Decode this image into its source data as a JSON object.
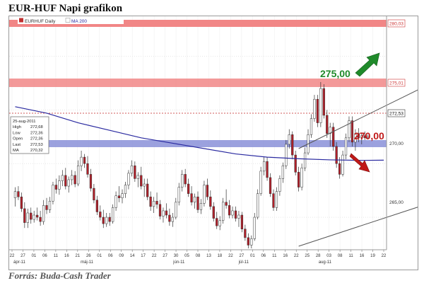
{
  "page": {
    "title": "EUR-HUF Napi grafikon",
    "source": "Forrás: Buda-Cash Trader"
  },
  "chart_header": {
    "symbol": "EURHUF Daily",
    "indicator": "MA 200"
  },
  "info_box": [
    {
      "label": "25-aug-2011",
      "value": ""
    },
    {
      "label": "High",
      "value": "272,68"
    },
    {
      "label": "Low",
      "value": "272,36"
    },
    {
      "label": "Open",
      "value": "272,36"
    },
    {
      "label": "Last",
      "value": "272,53"
    },
    {
      "label": "MA",
      "value": "270,32"
    }
  ],
  "colors": {
    "up_candle": "#ffffff",
    "down_candle": "#b0202a",
    "ma_line": "#2a2aa0",
    "resistance_band": "#f08080",
    "support_band": "#8a90d8",
    "arrow_up": "#1f8a2a",
    "arrow_down": "#c01818",
    "label_275": "#1f8a2a",
    "label_270": "#c01818"
  },
  "chart_data": {
    "type": "candlestick",
    "y_ticks": [
      "265,00",
      "270,00"
    ],
    "ylim": [
      262.3,
      283.4
    ],
    "x_ticks": [
      "22",
      "27",
      "01",
      "06",
      "11",
      "16",
      "21",
      "26",
      "01",
      "06",
      "09",
      "14",
      "17",
      "22",
      "27",
      "30",
      "05",
      "08",
      "13",
      "18",
      "22",
      "27",
      "01",
      "06",
      "11",
      "16",
      "22",
      "25",
      "28",
      "03",
      "08",
      "11",
      "16",
      "19",
      "22"
    ],
    "month_labels": [
      "ápr-11",
      "máj-11",
      "jún-11",
      "júl-11",
      "aug-11"
    ],
    "levels": {
      "resistance_top": "280,03",
      "resistance_mid": "275,01",
      "last_price": "272,53"
    },
    "annotations": [
      {
        "text": "275,00",
        "price": 275.0
      },
      {
        "text": "270,00",
        "price": 270.0
      }
    ],
    "channel": {
      "lower": [
        [
          0,
          262.3
        ],
        [
          83,
          270.3
        ]
      ],
      "upper": [
        [
          0,
          271.4
        ],
        [
          83,
          283.4
        ]
      ]
    },
    "ma_200": [
      [
        -90,
        275.3
      ],
      [
        -80,
        274.7
      ],
      [
        -70,
        273.8
      ],
      [
        -60,
        273.1
      ],
      [
        -50,
        272.4
      ],
      [
        -40,
        271.9
      ],
      [
        -30,
        271.4
      ],
      [
        -20,
        270.9
      ],
      [
        -10,
        270.6
      ],
      [
        0,
        270.45
      ],
      [
        10,
        270.35
      ],
      [
        20,
        270.3
      ],
      [
        27,
        270.32
      ]
    ],
    "candles": [
      [
        -90,
        266.8,
        267.8,
        266.0,
        267.4
      ],
      [
        -89,
        267.4,
        267.9,
        266.6,
        266.9
      ],
      [
        -88,
        266.9,
        267.3,
        265.5,
        265.8
      ],
      [
        -87,
        265.8,
        266.4,
        264.0,
        264.5
      ],
      [
        -86,
        264.5,
        265.8,
        264.0,
        265.4
      ],
      [
        -85,
        265.4,
        265.9,
        264.4,
        264.8
      ],
      [
        -84,
        264.8,
        265.6,
        264.5,
        265.2
      ],
      [
        -83,
        265.2,
        265.9,
        264.7,
        265.0
      ],
      [
        -82,
        265.0,
        265.6,
        264.2,
        264.6
      ],
      [
        -81,
        264.6,
        266.6,
        264.3,
        266.1
      ],
      [
        -80,
        266.1,
        266.8,
        265.3,
        265.7
      ],
      [
        -79,
        265.7,
        266.9,
        265.4,
        266.5
      ],
      [
        -78,
        266.5,
        268.3,
        266.2,
        268.0
      ],
      [
        -77,
        268.0,
        268.6,
        267.2,
        267.6
      ],
      [
        -76,
        267.6,
        268.9,
        267.1,
        268.4
      ],
      [
        -75,
        268.4,
        269.4,
        267.9,
        268.9
      ],
      [
        -74,
        268.9,
        269.6,
        267.6,
        267.9
      ],
      [
        -73,
        267.9,
        268.8,
        267.3,
        268.5
      ],
      [
        -72,
        268.5,
        269.4,
        268.0,
        268.9
      ],
      [
        -71,
        268.9,
        269.3,
        267.8,
        268.1
      ],
      [
        -70,
        268.1,
        270.3,
        267.9,
        269.8
      ],
      [
        -69,
        269.8,
        271.2,
        269.3,
        270.6
      ],
      [
        -68,
        270.6,
        270.9,
        269.6,
        270.0
      ],
      [
        -67,
        270.0,
        270.7,
        268.7,
        269.0
      ],
      [
        -66,
        269.0,
        269.5,
        267.4,
        267.7
      ],
      [
        -65,
        267.7,
        268.1,
        266.3,
        266.6
      ],
      [
        -64,
        266.6,
        267.0,
        265.2,
        265.5
      ],
      [
        -63,
        265.5,
        266.1,
        264.7,
        265.0
      ],
      [
        -62,
        265.0,
        265.7,
        264.0,
        264.4
      ],
      [
        -61,
        264.4,
        265.4,
        264.1,
        265.0
      ],
      [
        -60,
        265.0,
        265.4,
        264.2,
        264.6
      ],
      [
        -59,
        264.6,
        266.2,
        264.4,
        265.9
      ],
      [
        -58,
        265.9,
        267.4,
        265.6,
        267.0
      ],
      [
        -57,
        267.0,
        267.9,
        266.4,
        266.8
      ],
      [
        -56,
        266.8,
        267.6,
        266.3,
        267.2
      ],
      [
        -55,
        267.2,
        268.3,
        266.8,
        268.0
      ],
      [
        -54,
        268.0,
        269.4,
        267.6,
        269.1
      ],
      [
        -53,
        269.1,
        270.3,
        268.8,
        269.8
      ],
      [
        -52,
        269.8,
        270.2,
        268.3,
        268.6
      ],
      [
        -51,
        268.6,
        269.2,
        267.8,
        268.9
      ],
      [
        -50,
        268.9,
        269.7,
        267.6,
        267.9
      ],
      [
        -49,
        267.9,
        268.6,
        266.9,
        268.1
      ],
      [
        -48,
        268.1,
        268.6,
        266.6,
        266.9
      ],
      [
        -47,
        266.9,
        267.4,
        265.6,
        266.0
      ],
      [
        -46,
        266.0,
        266.9,
        265.4,
        266.5
      ],
      [
        -45,
        266.5,
        267.3,
        265.8,
        266.2
      ],
      [
        -44,
        266.2,
        266.6,
        264.8,
        265.1
      ],
      [
        -43,
        265.1,
        265.9,
        264.5,
        265.6
      ],
      [
        -42,
        265.6,
        266.3,
        264.9,
        265.2
      ],
      [
        -41,
        265.2,
        265.8,
        264.2,
        264.6
      ],
      [
        -40,
        264.6,
        265.4,
        264.1,
        265.0
      ],
      [
        -39,
        265.0,
        266.8,
        264.8,
        266.4
      ],
      [
        -38,
        266.4,
        268.2,
        266.1,
        267.8
      ],
      [
        -37,
        267.8,
        269.4,
        267.4,
        269.0
      ],
      [
        -36,
        269.0,
        269.5,
        267.8,
        268.1
      ],
      [
        -35,
        268.1,
        268.6,
        266.9,
        267.2
      ],
      [
        -34,
        267.2,
        267.9,
        266.1,
        266.4
      ],
      [
        -33,
        266.4,
        267.2,
        265.8,
        266.9
      ],
      [
        -32,
        266.9,
        267.4,
        265.4,
        265.7
      ],
      [
        -31,
        265.7,
        266.7,
        265.3,
        266.3
      ],
      [
        -30,
        266.3,
        268.4,
        266.0,
        268.0
      ],
      [
        -29,
        268.0,
        268.6,
        266.6,
        266.9
      ],
      [
        -28,
        266.9,
        267.5,
        265.7,
        266.0
      ],
      [
        -27,
        266.0,
        266.4,
        264.6,
        264.9
      ],
      [
        -26,
        264.9,
        265.5,
        263.9,
        264.2
      ],
      [
        -25,
        264.2,
        265.1,
        263.8,
        264.7
      ],
      [
        -24,
        264.7,
        266.8,
        264.4,
        266.4
      ],
      [
        -23,
        266.4,
        267.6,
        265.8,
        266.1
      ],
      [
        -22,
        266.1,
        266.6,
        264.9,
        265.2
      ],
      [
        -21,
        265.2,
        266.0,
        264.9,
        265.6
      ],
      [
        -20,
        265.6,
        266.0,
        264.6,
        264.9
      ],
      [
        -19,
        264.9,
        265.6,
        264.1,
        265.2
      ],
      [
        -18,
        265.2,
        265.5,
        263.6,
        263.9
      ],
      [
        -17,
        263.9,
        264.3,
        262.8,
        263.1
      ],
      [
        -16,
        263.1,
        263.5,
        262.1,
        262.4
      ],
      [
        -15,
        262.4,
        263.3,
        262.1,
        263.0
      ],
      [
        -14,
        263.0,
        265.4,
        262.8,
        265.0
      ],
      [
        -13,
        265.0,
        267.6,
        264.8,
        267.2
      ],
      [
        -12,
        267.2,
        269.7,
        267.0,
        269.3
      ],
      [
        -11,
        269.3,
        270.6,
        268.9,
        270.2
      ],
      [
        -10,
        270.2,
        270.6,
        268.4,
        268.7
      ],
      [
        -9,
        268.7,
        269.1,
        266.9,
        267.2
      ],
      [
        -8,
        267.2,
        267.6,
        265.6,
        265.9
      ],
      [
        -7,
        265.9,
        267.8,
        265.6,
        267.4
      ],
      [
        -6,
        267.4,
        268.9,
        267.0,
        268.6
      ],
      [
        -5,
        268.6,
        270.1,
        268.2,
        269.8
      ],
      [
        -4,
        269.8,
        272.2,
        269.5,
        271.8
      ],
      [
        -3,
        271.8,
        273.2,
        271.4,
        272.7
      ],
      [
        -2,
        272.7,
        273.0,
        270.4,
        270.8
      ],
      [
        -1,
        270.8,
        271.2,
        268.9,
        269.2
      ],
      [
        0,
        269.2,
        269.7,
        267.4,
        267.8
      ],
      [
        1,
        267.8,
        270.0,
        267.5,
        269.6
      ],
      [
        2,
        269.6,
        271.5,
        269.3,
        271.0
      ],
      [
        3,
        271.0,
        273.2,
        270.8,
        272.7
      ],
      [
        4,
        272.7,
        274.6,
        272.4,
        274.2
      ],
      [
        5,
        274.2,
        276.4,
        273.9,
        276.0
      ],
      [
        6,
        276.0,
        276.4,
        273.4,
        273.8
      ],
      [
        7,
        273.8,
        277.6,
        273.4,
        277.0
      ],
      [
        8,
        277.0,
        277.4,
        274.2,
        274.5
      ],
      [
        9,
        274.5,
        275.0,
        272.4,
        272.8
      ],
      [
        10,
        272.8,
        273.8,
        271.6,
        273.4
      ],
      [
        11,
        273.4,
        273.8,
        271.2,
        271.6
      ],
      [
        12,
        271.6,
        272.0,
        269.6,
        270.0
      ],
      [
        13,
        270.0,
        270.6,
        268.6,
        269.0
      ],
      [
        14,
        269.0,
        271.2,
        268.8,
        270.8
      ],
      [
        15,
        270.8,
        272.8,
        270.4,
        272.4
      ],
      [
        16,
        272.4,
        274.4,
        272.0,
        274.0
      ],
      [
        17,
        274.0,
        274.4,
        271.6,
        272.0
      ],
      [
        18,
        272.0,
        273.2,
        271.2,
        272.8
      ],
      [
        19,
        272.8,
        273.3,
        272.0,
        272.4
      ],
      [
        20,
        272.4,
        272.9,
        271.8,
        272.6
      ],
      [
        21,
        272.6,
        273.0,
        272.2,
        272.4
      ],
      [
        22,
        272.4,
        272.7,
        272.3,
        272.5
      ]
    ]
  }
}
